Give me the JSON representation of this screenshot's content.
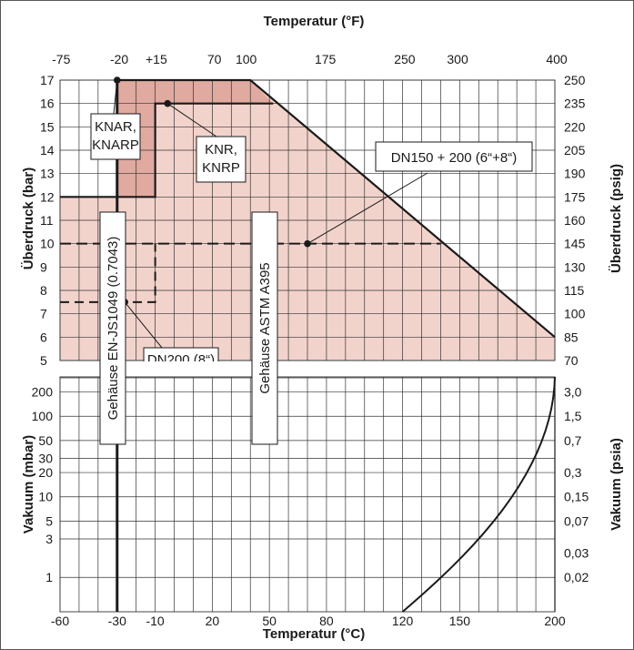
{
  "chart_data": {
    "type": "area",
    "top_axis_title": "Temperatur (°F)",
    "bottom_axis_title": "Temperatur (°C)",
    "upper_left_axis_title": "Überdruck (bar)",
    "upper_right_axis_title": "Überdruck (psig)",
    "lower_left_axis_title": "Vakuum (mbar)",
    "lower_right_axis_title": "Vakuum (psia)",
    "x_ticks_c": [
      "-60",
      "-30",
      "-10",
      "20",
      "50",
      "80",
      "120",
      "150",
      "200"
    ],
    "x_ticks_f": [
      "-75",
      "-20",
      "+15",
      "70",
      "100",
      "175",
      "250",
      "300",
      "400"
    ],
    "upper_ticks_bar": [
      "17",
      "16",
      "15",
      "14",
      "13",
      "12",
      "11",
      "10",
      "9",
      "8",
      "7",
      "6",
      "5"
    ],
    "upper_ticks_psig": [
      "250",
      "235",
      "220",
      "205",
      "190",
      "175",
      "160",
      "145",
      "130",
      "115",
      "100",
      "85",
      "70"
    ],
    "lower_ticks_mbar": [
      "200",
      "100",
      "50",
      "30",
      "20",
      "10",
      "5",
      "3",
      "1"
    ],
    "lower_ticks_psia": [
      "3,0",
      "1,5",
      "0,7",
      "0,3",
      "0,15",
      "0,07",
      "0,03",
      "0,02"
    ],
    "xlim_c": [
      -60,
      200
    ],
    "upper_ylim_bar": [
      5,
      17
    ],
    "lower_ylim_mbar": [
      1,
      300
    ],
    "lower_scale": "log",
    "regions": [
      {
        "label": "Gehäuse EN-JS1049 (0.7043)",
        "x_from_c": -30
      },
      {
        "label": "Gehäuse ASTM A395",
        "x_from_c": -60
      }
    ],
    "series": [
      {
        "name": "KNAR, KNARP",
        "points": [
          [
            -30,
            17
          ],
          [
            40,
            17
          ],
          [
            200,
            6
          ]
        ]
      },
      {
        "name": "KNR, KNRP",
        "points": [
          [
            -60,
            12
          ],
          [
            -10,
            12
          ],
          [
            -10,
            16
          ],
          [
            52,
            16
          ]
        ]
      },
      {
        "name": "DN150 + 200 (6“+8“)",
        "points": [
          [
            -60,
            10
          ],
          [
            140,
            10
          ]
        ]
      },
      {
        "name": "DN200 (8“)",
        "points": [
          [
            -60,
            7.5
          ],
          [
            -10,
            7.5
          ]
        ]
      }
    ],
    "annotations": {
      "knar": "KNAR,\nKNARP",
      "knr": "KNR,\nKNRP",
      "dn150": "DN150 + 200 (6“+8“)",
      "dn200": "DN200 (8“)",
      "gehause_en": "Gehäuse EN-JS1049 (0.7043)",
      "gehause_astm": "Gehäuse ASTM A395"
    },
    "colors": {
      "astm_fill": "#f2d3cb",
      "knar_fill": "#e0aaa0",
      "line": "#1a1a1a",
      "grid": "#333333"
    }
  }
}
